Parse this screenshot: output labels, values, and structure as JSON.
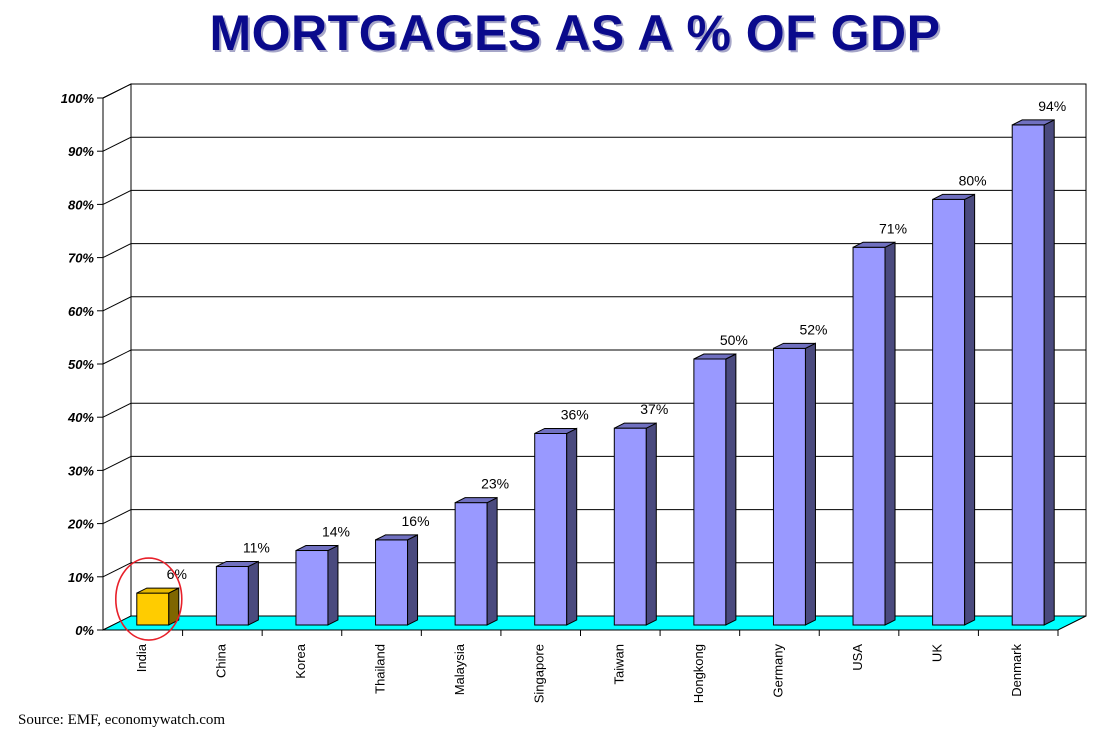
{
  "chart_data": {
    "type": "bar",
    "title": "MORTGAGES AS A % OF GDP",
    "categories": [
      "India",
      "China",
      "Korea",
      "Thailand",
      "Malaysia",
      "Singapore",
      "Taiwan",
      "Hongkong",
      "Germany",
      "USA",
      "UK",
      "Denmark"
    ],
    "values": [
      6,
      11,
      14,
      16,
      23,
      36,
      37,
      50,
      52,
      71,
      80,
      94
    ],
    "data_labels": [
      "6%",
      "11%",
      "14%",
      "16%",
      "23%",
      "36%",
      "37%",
      "50%",
      "52%",
      "71%",
      "80%",
      "94%"
    ],
    "y_ticks": [
      "0%",
      "10%",
      "20%",
      "30%",
      "40%",
      "50%",
      "60%",
      "70%",
      "80%",
      "90%",
      "100%"
    ],
    "ylim": [
      0,
      100
    ],
    "grid": true,
    "highlight": {
      "category": "India",
      "annotation": "red circle"
    },
    "colors": {
      "bar_front": "#9999ff",
      "bar_side": "#4a4a7e",
      "bar_top": "#7070c0",
      "highlight_front": "#ffcc00",
      "highlight_side": "#7f6600",
      "highlight_top": "#e6b800",
      "floor": "#00ffff",
      "circle": "#e8202a",
      "title": "#0a0a8c"
    }
  },
  "source": "Source: EMF, economywatch.com"
}
